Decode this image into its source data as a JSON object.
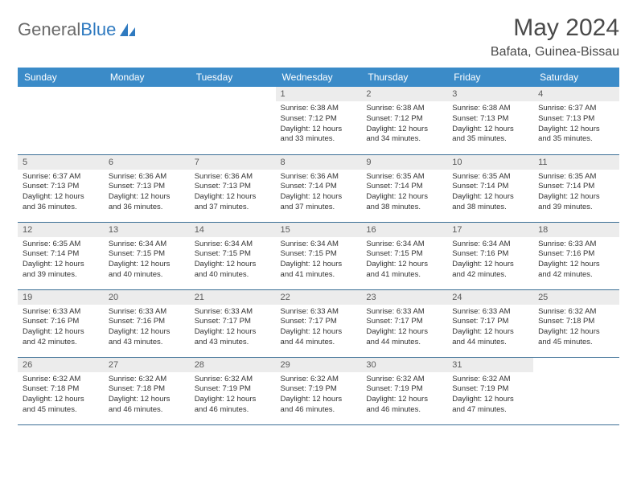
{
  "logo": {
    "text_gray": "General",
    "text_blue": "Blue"
  },
  "title": "May 2024",
  "location": "Bafata, Guinea-Bissau",
  "header_bg": "#3b8bc8",
  "header_fg": "#ffffff",
  "row_divider": "#3b6e95",
  "daynum_bg": "#ececec",
  "weekdays": [
    "Sunday",
    "Monday",
    "Tuesday",
    "Wednesday",
    "Thursday",
    "Friday",
    "Saturday"
  ],
  "weeks": [
    [
      {
        "n": "",
        "sunrise": "",
        "sunset": "",
        "daylight": ""
      },
      {
        "n": "",
        "sunrise": "",
        "sunset": "",
        "daylight": ""
      },
      {
        "n": "",
        "sunrise": "",
        "sunset": "",
        "daylight": ""
      },
      {
        "n": "1",
        "sunrise": "Sunrise: 6:38 AM",
        "sunset": "Sunset: 7:12 PM",
        "daylight": "Daylight: 12 hours and 33 minutes."
      },
      {
        "n": "2",
        "sunrise": "Sunrise: 6:38 AM",
        "sunset": "Sunset: 7:12 PM",
        "daylight": "Daylight: 12 hours and 34 minutes."
      },
      {
        "n": "3",
        "sunrise": "Sunrise: 6:38 AM",
        "sunset": "Sunset: 7:13 PM",
        "daylight": "Daylight: 12 hours and 35 minutes."
      },
      {
        "n": "4",
        "sunrise": "Sunrise: 6:37 AM",
        "sunset": "Sunset: 7:13 PM",
        "daylight": "Daylight: 12 hours and 35 minutes."
      }
    ],
    [
      {
        "n": "5",
        "sunrise": "Sunrise: 6:37 AM",
        "sunset": "Sunset: 7:13 PM",
        "daylight": "Daylight: 12 hours and 36 minutes."
      },
      {
        "n": "6",
        "sunrise": "Sunrise: 6:36 AM",
        "sunset": "Sunset: 7:13 PM",
        "daylight": "Daylight: 12 hours and 36 minutes."
      },
      {
        "n": "7",
        "sunrise": "Sunrise: 6:36 AM",
        "sunset": "Sunset: 7:13 PM",
        "daylight": "Daylight: 12 hours and 37 minutes."
      },
      {
        "n": "8",
        "sunrise": "Sunrise: 6:36 AM",
        "sunset": "Sunset: 7:14 PM",
        "daylight": "Daylight: 12 hours and 37 minutes."
      },
      {
        "n": "9",
        "sunrise": "Sunrise: 6:35 AM",
        "sunset": "Sunset: 7:14 PM",
        "daylight": "Daylight: 12 hours and 38 minutes."
      },
      {
        "n": "10",
        "sunrise": "Sunrise: 6:35 AM",
        "sunset": "Sunset: 7:14 PM",
        "daylight": "Daylight: 12 hours and 38 minutes."
      },
      {
        "n": "11",
        "sunrise": "Sunrise: 6:35 AM",
        "sunset": "Sunset: 7:14 PM",
        "daylight": "Daylight: 12 hours and 39 minutes."
      }
    ],
    [
      {
        "n": "12",
        "sunrise": "Sunrise: 6:35 AM",
        "sunset": "Sunset: 7:14 PM",
        "daylight": "Daylight: 12 hours and 39 minutes."
      },
      {
        "n": "13",
        "sunrise": "Sunrise: 6:34 AM",
        "sunset": "Sunset: 7:15 PM",
        "daylight": "Daylight: 12 hours and 40 minutes."
      },
      {
        "n": "14",
        "sunrise": "Sunrise: 6:34 AM",
        "sunset": "Sunset: 7:15 PM",
        "daylight": "Daylight: 12 hours and 40 minutes."
      },
      {
        "n": "15",
        "sunrise": "Sunrise: 6:34 AM",
        "sunset": "Sunset: 7:15 PM",
        "daylight": "Daylight: 12 hours and 41 minutes."
      },
      {
        "n": "16",
        "sunrise": "Sunrise: 6:34 AM",
        "sunset": "Sunset: 7:15 PM",
        "daylight": "Daylight: 12 hours and 41 minutes."
      },
      {
        "n": "17",
        "sunrise": "Sunrise: 6:34 AM",
        "sunset": "Sunset: 7:16 PM",
        "daylight": "Daylight: 12 hours and 42 minutes."
      },
      {
        "n": "18",
        "sunrise": "Sunrise: 6:33 AM",
        "sunset": "Sunset: 7:16 PM",
        "daylight": "Daylight: 12 hours and 42 minutes."
      }
    ],
    [
      {
        "n": "19",
        "sunrise": "Sunrise: 6:33 AM",
        "sunset": "Sunset: 7:16 PM",
        "daylight": "Daylight: 12 hours and 42 minutes."
      },
      {
        "n": "20",
        "sunrise": "Sunrise: 6:33 AM",
        "sunset": "Sunset: 7:16 PM",
        "daylight": "Daylight: 12 hours and 43 minutes."
      },
      {
        "n": "21",
        "sunrise": "Sunrise: 6:33 AM",
        "sunset": "Sunset: 7:17 PM",
        "daylight": "Daylight: 12 hours and 43 minutes."
      },
      {
        "n": "22",
        "sunrise": "Sunrise: 6:33 AM",
        "sunset": "Sunset: 7:17 PM",
        "daylight": "Daylight: 12 hours and 44 minutes."
      },
      {
        "n": "23",
        "sunrise": "Sunrise: 6:33 AM",
        "sunset": "Sunset: 7:17 PM",
        "daylight": "Daylight: 12 hours and 44 minutes."
      },
      {
        "n": "24",
        "sunrise": "Sunrise: 6:33 AM",
        "sunset": "Sunset: 7:17 PM",
        "daylight": "Daylight: 12 hours and 44 minutes."
      },
      {
        "n": "25",
        "sunrise": "Sunrise: 6:32 AM",
        "sunset": "Sunset: 7:18 PM",
        "daylight": "Daylight: 12 hours and 45 minutes."
      }
    ],
    [
      {
        "n": "26",
        "sunrise": "Sunrise: 6:32 AM",
        "sunset": "Sunset: 7:18 PM",
        "daylight": "Daylight: 12 hours and 45 minutes."
      },
      {
        "n": "27",
        "sunrise": "Sunrise: 6:32 AM",
        "sunset": "Sunset: 7:18 PM",
        "daylight": "Daylight: 12 hours and 46 minutes."
      },
      {
        "n": "28",
        "sunrise": "Sunrise: 6:32 AM",
        "sunset": "Sunset: 7:19 PM",
        "daylight": "Daylight: 12 hours and 46 minutes."
      },
      {
        "n": "29",
        "sunrise": "Sunrise: 6:32 AM",
        "sunset": "Sunset: 7:19 PM",
        "daylight": "Daylight: 12 hours and 46 minutes."
      },
      {
        "n": "30",
        "sunrise": "Sunrise: 6:32 AM",
        "sunset": "Sunset: 7:19 PM",
        "daylight": "Daylight: 12 hours and 46 minutes."
      },
      {
        "n": "31",
        "sunrise": "Sunrise: 6:32 AM",
        "sunset": "Sunset: 7:19 PM",
        "daylight": "Daylight: 12 hours and 47 minutes."
      },
      {
        "n": "",
        "sunrise": "",
        "sunset": "",
        "daylight": ""
      }
    ]
  ]
}
